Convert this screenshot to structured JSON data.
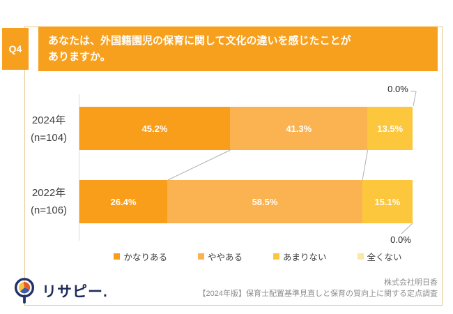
{
  "page": {
    "background": "#ffffff",
    "border_color": "#e6c98c",
    "accent_orange": "#f7a01e"
  },
  "header": {
    "q_label": "Q4",
    "question_line1": "あなたは、外国籍園児の保育に関して文化の違いを感じたことが",
    "question_line2": "ありますか。"
  },
  "chart_data": {
    "type": "bar",
    "stacked": true,
    "orientation": "horizontal",
    "unit": "%",
    "xlim": [
      0,
      100
    ],
    "grid": false,
    "legend_position": "bottom",
    "categories": [
      "2024年 (n=104)",
      "2022年 (n=106)"
    ],
    "series": [
      {
        "name": "かなりある",
        "color": "#f99e1b",
        "values": [
          45.2,
          26.4
        ]
      },
      {
        "name": "ややある",
        "color": "#fbb250",
        "values": [
          41.3,
          58.5
        ]
      },
      {
        "name": "あまりない",
        "color": "#fcc73c",
        "values": [
          13.5,
          15.1
        ]
      },
      {
        "name": "全くない",
        "color": "#fbe8a6",
        "values": [
          0.0,
          0.0
        ]
      }
    ]
  },
  "rows": [
    {
      "year": "2024年",
      "n_label": "(n=104)",
      "seg1_pct": 45.2,
      "seg2_pct": 41.3,
      "seg3_pct": 13.5,
      "seg1_label": "45.2%",
      "seg2_label": "41.3%",
      "seg3_label": "13.5%",
      "zero_label": "0.0%"
    },
    {
      "year": "2022年",
      "n_label": "(n=106)",
      "seg1_pct": 26.4,
      "seg2_pct": 58.5,
      "seg3_pct": 15.1,
      "seg1_label": "26.4%",
      "seg2_label": "58.5%",
      "seg3_label": "15.1%",
      "zero_label": "0.0%"
    }
  ],
  "legend": {
    "items": [
      {
        "label": "かなりある",
        "color": "#f99e1b"
      },
      {
        "label": "ややある",
        "color": "#fbb250"
      },
      {
        "label": "あまりない",
        "color": "#fcc73c"
      },
      {
        "label": "全くない",
        "color": "#fbe8a6"
      }
    ]
  },
  "footer": {
    "logo_text": "リサピー.",
    "credit_line1": "株式会社明日香",
    "credit_line2": "【2024年版】保育士配置基準見直しと保育の質向上に関する定点調査"
  }
}
